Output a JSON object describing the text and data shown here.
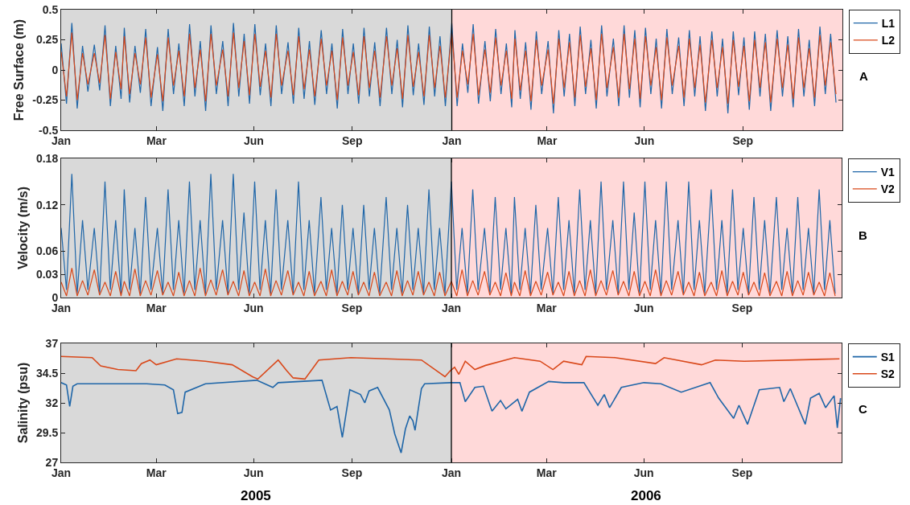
{
  "chart_data": [
    {
      "type": "line",
      "ylabel": "Free Surface (m)",
      "annotations": [
        "A"
      ],
      "legend": "top right",
      "x": [
        "2005-01-01",
        "2005-01-06",
        "2005-01-11",
        "2005-01-16",
        "2005-01-21",
        "2005-01-26",
        "2005-02-01",
        "2005-02-06",
        "2005-02-11",
        "2005-02-16",
        "2005-02-21",
        "2005-02-26",
        "2005-03-01",
        "2005-03-06",
        "2005-03-11",
        "2005-03-16",
        "2005-03-21",
        "2005-03-26",
        "2005-04-01",
        "2005-04-06",
        "2005-04-11",
        "2005-04-16",
        "2005-04-21",
        "2005-04-26",
        "2005-05-01",
        "2005-05-06",
        "2005-05-11",
        "2005-05-16",
        "2005-05-21",
        "2005-05-26",
        "2005-06-01",
        "2005-06-06",
        "2005-06-11",
        "2005-06-16",
        "2005-06-21",
        "2005-06-26",
        "2005-07-01",
        "2005-07-06",
        "2005-07-11",
        "2005-07-16",
        "2005-07-21",
        "2005-07-26",
        "2005-08-01",
        "2005-08-06",
        "2005-08-11",
        "2005-08-16",
        "2005-08-21",
        "2005-08-26",
        "2005-09-01",
        "2005-09-06",
        "2005-09-11",
        "2005-09-16",
        "2005-09-21",
        "2005-09-26",
        "2005-10-01",
        "2005-10-06",
        "2005-10-11",
        "2005-10-16",
        "2005-10-21",
        "2005-10-26",
        "2005-11-01",
        "2005-11-06",
        "2005-11-11",
        "2005-11-16",
        "2005-11-21",
        "2005-11-26",
        "2005-12-01",
        "2005-12-06",
        "2005-12-11",
        "2005-12-16",
        "2005-12-21",
        "2005-12-26",
        "2006-01-01",
        "2006-01-06",
        "2006-01-11",
        "2006-01-16",
        "2006-01-21",
        "2006-01-26",
        "2006-02-01",
        "2006-02-06",
        "2006-02-11",
        "2006-02-16",
        "2006-02-21",
        "2006-02-26",
        "2006-03-01",
        "2006-03-06",
        "2006-03-11",
        "2006-03-16",
        "2006-03-21",
        "2006-03-26",
        "2006-04-01",
        "2006-04-06",
        "2006-04-11",
        "2006-04-16",
        "2006-04-21",
        "2006-04-26",
        "2006-05-01",
        "2006-05-06",
        "2006-05-11",
        "2006-05-16",
        "2006-05-21",
        "2006-05-26",
        "2006-06-01",
        "2006-06-06",
        "2006-06-11",
        "2006-06-16",
        "2006-06-21",
        "2006-06-26",
        "2006-07-01",
        "2006-07-06",
        "2006-07-11",
        "2006-07-16",
        "2006-07-21",
        "2006-07-26",
        "2006-08-01",
        "2006-08-06",
        "2006-08-11",
        "2006-08-16",
        "2006-08-21",
        "2006-08-26",
        "2006-09-01",
        "2006-09-06",
        "2006-09-11",
        "2006-09-16",
        "2006-09-21",
        "2006-09-26",
        "2006-10-01",
        "2006-10-06",
        "2006-10-11",
        "2006-10-16",
        "2006-10-21",
        "2006-10-26",
        "2006-11-01",
        "2006-11-06",
        "2006-11-11",
        "2006-11-16",
        "2006-11-21",
        "2006-11-26",
        "2006-12-01",
        "2006-12-06",
        "2006-12-11",
        "2006-12-16",
        "2006-12-21",
        "2006-12-26"
      ],
      "series": [
        {
          "name": "L1",
          "color": "#1f66a8",
          "values": [
            0.22,
            -0.28,
            0.39,
            -0.32,
            0.2,
            -0.18,
            0.21,
            -0.17,
            0.37,
            -0.3,
            0.2,
            -0.24,
            0.35,
            -0.27,
            0.2,
            -0.19,
            0.34,
            -0.3,
            0.19,
            -0.34,
            0.34,
            -0.2,
            0.22,
            -0.3,
            0.38,
            -0.22,
            0.24,
            -0.34,
            0.37,
            -0.2,
            0.24,
            -0.3,
            0.39,
            -0.22,
            0.3,
            -0.28,
            0.38,
            -0.21,
            0.22,
            -0.3,
            0.37,
            -0.2,
            0.23,
            -0.28,
            0.35,
            -0.24,
            0.24,
            -0.29,
            0.33,
            -0.2,
            0.22,
            -0.32,
            0.34,
            -0.2,
            0.22,
            -0.28,
            0.35,
            -0.22,
            0.23,
            -0.3,
            0.35,
            -0.2,
            0.25,
            -0.31,
            0.37,
            -0.21,
            0.22,
            -0.29,
            0.36,
            -0.22,
            0.28,
            -0.3,
            0.39,
            -0.3,
            0.22,
            -0.19,
            0.38,
            -0.28,
            0.24,
            -0.26,
            0.34,
            -0.2,
            0.22,
            -0.31,
            0.33,
            -0.24,
            0.23,
            -0.33,
            0.32,
            -0.2,
            0.24,
            -0.36,
            0.33,
            -0.22,
            0.3,
            -0.3,
            0.36,
            -0.2,
            0.25,
            -0.32,
            0.37,
            -0.22,
            0.26,
            -0.3,
            0.37,
            -0.23,
            0.33,
            -0.31,
            0.35,
            -0.2,
            0.26,
            -0.32,
            0.34,
            -0.2,
            0.27,
            -0.3,
            0.33,
            -0.22,
            0.28,
            -0.34,
            0.32,
            -0.22,
            0.26,
            -0.36,
            0.32,
            -0.21,
            0.27,
            -0.33,
            0.32,
            -0.22,
            0.3,
            -0.34,
            0.33,
            -0.22,
            0.28,
            -0.31,
            0.34,
            -0.22,
            0.25,
            -0.3,
            0.36,
            -0.2,
            0.3,
            -0.27
          ]
        },
        {
          "name": "L2",
          "color": "#d9481a",
          "values": [
            0.15,
            -0.22,
            0.31,
            -0.25,
            0.14,
            -0.12,
            0.14,
            -0.11,
            0.29,
            -0.24,
            0.15,
            -0.16,
            0.28,
            -0.2,
            0.14,
            -0.12,
            0.27,
            -0.23,
            0.13,
            -0.26,
            0.27,
            -0.13,
            0.16,
            -0.22,
            0.3,
            -0.15,
            0.17,
            -0.26,
            0.3,
            -0.13,
            0.17,
            -0.22,
            0.31,
            -0.15,
            0.24,
            -0.21,
            0.3,
            -0.14,
            0.16,
            -0.23,
            0.3,
            -0.13,
            0.16,
            -0.21,
            0.28,
            -0.16,
            0.17,
            -0.22,
            0.26,
            -0.13,
            0.16,
            -0.25,
            0.27,
            -0.13,
            0.15,
            -0.21,
            0.28,
            -0.15,
            0.16,
            -0.23,
            0.28,
            -0.13,
            0.18,
            -0.24,
            0.29,
            -0.14,
            0.15,
            -0.22,
            0.29,
            -0.15,
            0.2,
            -0.23,
            0.31,
            -0.23,
            0.16,
            -0.12,
            0.3,
            -0.21,
            0.17,
            -0.19,
            0.27,
            -0.13,
            0.16,
            -0.24,
            0.26,
            -0.17,
            0.16,
            -0.26,
            0.25,
            -0.13,
            0.17,
            -0.28,
            0.26,
            -0.15,
            0.23,
            -0.23,
            0.29,
            -0.14,
            0.18,
            -0.25,
            0.3,
            -0.15,
            0.19,
            -0.23,
            0.3,
            -0.16,
            0.26,
            -0.24,
            0.28,
            -0.13,
            0.19,
            -0.25,
            0.27,
            -0.13,
            0.2,
            -0.23,
            0.26,
            -0.15,
            0.21,
            -0.27,
            0.25,
            -0.15,
            0.19,
            -0.28,
            0.25,
            -0.14,
            0.2,
            -0.26,
            0.25,
            -0.15,
            0.23,
            -0.27,
            0.26,
            -0.15,
            0.21,
            -0.24,
            0.27,
            -0.15,
            0.18,
            -0.23,
            0.29,
            -0.13,
            0.23,
            -0.2
          ]
        }
      ],
      "xlim": [
        "2005-01-01",
        "2007-01-01"
      ],
      "xticks": [
        {
          "value": "2005-01-01",
          "label": "Jan"
        },
        {
          "value": "2005-03-31",
          "label": "Mar"
        },
        {
          "value": "2005-06-30",
          "label": "Jun"
        },
        {
          "value": "2005-09-30",
          "label": "Sep"
        },
        {
          "value": "2006-01-01",
          "label": "Jan"
        },
        {
          "value": "2006-03-31",
          "label": "Mar"
        },
        {
          "value": "2006-06-30",
          "label": "Jun"
        },
        {
          "value": "2006-09-30",
          "label": "Sep"
        }
      ],
      "ylim": [
        -0.5,
        0.5
      ],
      "yticks": [
        -0.5,
        -0.25,
        0,
        0.25,
        0.5
      ],
      "bands": [
        {
          "axis": "x",
          "from": "2005-01-01",
          "to": "2006-01-01",
          "color": "#d9d9d9"
        },
        {
          "axis": "x",
          "from": "2006-01-01",
          "to": "2007-01-01",
          "color": "#ffd9d9"
        }
      ],
      "ref_lines": [
        {
          "axis": "x",
          "value": "2006-01-01",
          "color": "#000000"
        }
      ]
    },
    {
      "type": "line",
      "ylabel": "Velocity (m/s)",
      "annotations": [
        "B"
      ],
      "legend": "top right",
      "x": [
        "2005-01-01",
        "2005-01-06",
        "2005-01-11",
        "2005-01-16",
        "2005-01-21",
        "2005-01-26",
        "2005-02-01",
        "2005-02-06",
        "2005-02-11",
        "2005-02-16",
        "2005-02-21",
        "2005-02-26",
        "2005-03-01",
        "2005-03-06",
        "2005-03-11",
        "2005-03-16",
        "2005-03-21",
        "2005-03-26",
        "2005-04-01",
        "2005-04-06",
        "2005-04-11",
        "2005-04-16",
        "2005-04-21",
        "2005-04-26",
        "2005-05-01",
        "2005-05-06",
        "2005-05-11",
        "2005-05-16",
        "2005-05-21",
        "2005-05-26",
        "2005-06-01",
        "2005-06-06",
        "2005-06-11",
        "2005-06-16",
        "2005-06-21",
        "2005-06-26",
        "2005-07-01",
        "2005-07-06",
        "2005-07-11",
        "2005-07-16",
        "2005-07-21",
        "2005-07-26",
        "2005-08-01",
        "2005-08-06",
        "2005-08-11",
        "2005-08-16",
        "2005-08-21",
        "2005-08-26",
        "2005-09-01",
        "2005-09-06",
        "2005-09-11",
        "2005-09-16",
        "2005-09-21",
        "2005-09-26",
        "2005-10-01",
        "2005-10-06",
        "2005-10-11",
        "2005-10-16",
        "2005-10-21",
        "2005-10-26",
        "2005-11-01",
        "2005-11-06",
        "2005-11-11",
        "2005-11-16",
        "2005-11-21",
        "2005-11-26",
        "2005-12-01",
        "2005-12-06",
        "2005-12-11",
        "2005-12-16",
        "2005-12-21",
        "2005-12-26",
        "2006-01-01",
        "2006-01-06",
        "2006-01-11",
        "2006-01-16",
        "2006-01-21",
        "2006-01-26",
        "2006-02-01",
        "2006-02-06",
        "2006-02-11",
        "2006-02-16",
        "2006-02-21",
        "2006-02-26",
        "2006-03-01",
        "2006-03-06",
        "2006-03-11",
        "2006-03-16",
        "2006-03-21",
        "2006-03-26",
        "2006-04-01",
        "2006-04-06",
        "2006-04-11",
        "2006-04-16",
        "2006-04-21",
        "2006-04-26",
        "2006-05-01",
        "2006-05-06",
        "2006-05-11",
        "2006-05-16",
        "2006-05-21",
        "2006-05-26",
        "2006-06-01",
        "2006-06-06",
        "2006-06-11",
        "2006-06-16",
        "2006-06-21",
        "2006-06-26",
        "2006-07-01",
        "2006-07-06",
        "2006-07-11",
        "2006-07-16",
        "2006-07-21",
        "2006-07-26",
        "2006-08-01",
        "2006-08-06",
        "2006-08-11",
        "2006-08-16",
        "2006-08-21",
        "2006-08-26",
        "2006-09-01",
        "2006-09-06",
        "2006-09-11",
        "2006-09-16",
        "2006-09-21",
        "2006-09-26",
        "2006-10-01",
        "2006-10-06",
        "2006-10-11",
        "2006-10-16",
        "2006-10-21",
        "2006-10-26",
        "2006-11-01",
        "2006-11-06",
        "2006-11-11",
        "2006-11-16",
        "2006-11-21",
        "2006-11-26",
        "2006-12-01",
        "2006-12-06",
        "2006-12-11",
        "2006-12-16",
        "2006-12-21",
        "2006-12-26"
      ],
      "series": [
        {
          "name": "V1",
          "color": "#1f66a8",
          "values": [
            0.09,
            0.01,
            0.16,
            0.005,
            0.1,
            0.01,
            0.09,
            0.005,
            0.15,
            0.01,
            0.1,
            0.005,
            0.14,
            0.01,
            0.09,
            0.005,
            0.13,
            0.01,
            0.09,
            0.005,
            0.14,
            0.01,
            0.1,
            0.005,
            0.15,
            0.01,
            0.1,
            0.005,
            0.16,
            0.01,
            0.1,
            0.005,
            0.16,
            0.01,
            0.11,
            0.005,
            0.15,
            0.01,
            0.1,
            0.005,
            0.14,
            0.01,
            0.1,
            0.005,
            0.15,
            0.01,
            0.1,
            0.005,
            0.13,
            0.01,
            0.09,
            0.005,
            0.12,
            0.01,
            0.09,
            0.005,
            0.12,
            0.01,
            0.09,
            0.005,
            0.13,
            0.01,
            0.09,
            0.005,
            0.12,
            0.01,
            0.09,
            0.005,
            0.14,
            0.01,
            0.09,
            0.005,
            0.15,
            0.01,
            0.09,
            0.005,
            0.14,
            0.01,
            0.09,
            0.005,
            0.13,
            0.01,
            0.09,
            0.005,
            0.13,
            0.01,
            0.09,
            0.005,
            0.12,
            0.01,
            0.09,
            0.005,
            0.13,
            0.01,
            0.1,
            0.005,
            0.14,
            0.01,
            0.1,
            0.005,
            0.15,
            0.01,
            0.1,
            0.005,
            0.15,
            0.01,
            0.11,
            0.005,
            0.15,
            0.01,
            0.1,
            0.005,
            0.15,
            0.01,
            0.1,
            0.005,
            0.15,
            0.01,
            0.1,
            0.005,
            0.14,
            0.01,
            0.1,
            0.005,
            0.14,
            0.01,
            0.09,
            0.005,
            0.13,
            0.01,
            0.1,
            0.005,
            0.13,
            0.01,
            0.09,
            0.005,
            0.13,
            0.01,
            0.09,
            0.005,
            0.14,
            0.01,
            0.1,
            0.005
          ]
        },
        {
          "name": "V2",
          "color": "#d9481a",
          "values": [
            0.02,
            0.002,
            0.038,
            0.002,
            0.022,
            0.003,
            0.036,
            0.003,
            0.02,
            0.002,
            0.034,
            0.002,
            0.021,
            0.002,
            0.037,
            0.002,
            0.022,
            0.003,
            0.035,
            0.003,
            0.02,
            0.002,
            0.033,
            0.002,
            0.022,
            0.002,
            0.038,
            0.002,
            0.023,
            0.003,
            0.036,
            0.003,
            0.021,
            0.002,
            0.035,
            0.002,
            0.02,
            0.002,
            0.037,
            0.002,
            0.022,
            0.003,
            0.035,
            0.003,
            0.02,
            0.002,
            0.034,
            0.002,
            0.021,
            0.002,
            0.036,
            0.002,
            0.021,
            0.003,
            0.034,
            0.003,
            0.02,
            0.002,
            0.033,
            0.002,
            0.02,
            0.002,
            0.035,
            0.002,
            0.022,
            0.003,
            0.034,
            0.003,
            0.02,
            0.002,
            0.033,
            0.002,
            0.021,
            0.002,
            0.036,
            0.002,
            0.022,
            0.003,
            0.034,
            0.003,
            0.02,
            0.002,
            0.032,
            0.002,
            0.02,
            0.002,
            0.035,
            0.002,
            0.021,
            0.003,
            0.033,
            0.003,
            0.02,
            0.002,
            0.034,
            0.002,
            0.022,
            0.002,
            0.036,
            0.002,
            0.022,
            0.003,
            0.035,
            0.003,
            0.021,
            0.002,
            0.034,
            0.002,
            0.021,
            0.002,
            0.036,
            0.002,
            0.022,
            0.003,
            0.034,
            0.003,
            0.02,
            0.002,
            0.033,
            0.002,
            0.02,
            0.002,
            0.035,
            0.002,
            0.021,
            0.003,
            0.033,
            0.003,
            0.02,
            0.002,
            0.032,
            0.002,
            0.021,
            0.002,
            0.034,
            0.002,
            0.022,
            0.003,
            0.033,
            0.003,
            0.02,
            0.002,
            0.032,
            0.002
          ]
        }
      ],
      "xlim": [
        "2005-01-01",
        "2007-01-01"
      ],
      "xticks": [
        {
          "value": "2005-01-01",
          "label": "Jan"
        },
        {
          "value": "2005-03-31",
          "label": "Mar"
        },
        {
          "value": "2005-06-30",
          "label": "Jun"
        },
        {
          "value": "2005-09-30",
          "label": "Sep"
        },
        {
          "value": "2006-01-01",
          "label": "Jan"
        },
        {
          "value": "2006-03-31",
          "label": "Mar"
        },
        {
          "value": "2006-06-30",
          "label": "Jun"
        },
        {
          "value": "2006-09-30",
          "label": "Sep"
        }
      ],
      "ylim": [
        0,
        0.18
      ],
      "yticks": [
        0,
        0.03,
        0.06,
        0.12,
        0.18
      ],
      "bands": [
        {
          "axis": "x",
          "from": "2005-01-01",
          "to": "2006-01-01",
          "color": "#d9d9d9"
        },
        {
          "axis": "x",
          "from": "2006-01-01",
          "to": "2007-01-01",
          "color": "#ffd9d9"
        }
      ],
      "ref_lines": [
        {
          "axis": "x",
          "value": "2006-01-01",
          "color": "#000000"
        }
      ]
    },
    {
      "type": "line",
      "ylabel": "Salinity (psu)",
      "annotations": [
        "C"
      ],
      "legend": "top right",
      "series": [
        {
          "name": "S1",
          "color": "#1f66a8",
          "x": [
            "2005-01-01",
            "2005-01-06",
            "2005-01-09",
            "2005-01-12",
            "2005-01-16",
            "2005-03-22",
            "2005-04-08",
            "2005-04-16",
            "2005-04-20",
            "2005-04-24",
            "2005-04-27",
            "2005-05-16",
            "2005-07-03",
            "2005-07-18",
            "2005-07-23",
            "2005-09-02",
            "2005-09-10",
            "2005-09-16",
            "2005-09-21",
            "2005-09-28",
            "2005-10-08",
            "2005-10-12",
            "2005-10-16",
            "2005-10-24",
            "2005-11-04",
            "2005-11-09",
            "2005-11-15",
            "2005-11-19",
            "2005-11-23",
            "2005-11-26",
            "2005-11-28",
            "2005-12-04",
            "2005-12-07",
            "2005-12-31",
            "2006-01-09",
            "2006-01-14",
            "2006-01-23",
            "2006-01-31",
            "2006-02-08",
            "2006-02-16",
            "2006-02-21",
            "2006-03-04",
            "2006-03-08",
            "2006-03-15",
            "2006-04-02",
            "2006-04-16",
            "2006-05-05",
            "2006-05-18",
            "2006-05-24",
            "2006-05-29",
            "2006-06-09",
            "2006-06-30",
            "2006-07-16",
            "2006-08-04",
            "2006-08-31",
            "2006-09-08",
            "2006-09-22",
            "2006-09-27",
            "2006-10-05",
            "2006-10-16",
            "2006-11-04",
            "2006-11-08",
            "2006-11-14",
            "2006-11-28",
            "2006-12-03",
            "2006-12-11",
            "2006-12-17",
            "2006-12-25",
            "2006-12-28",
            "2006-12-31"
          ],
          "values": [
            33.7,
            33.5,
            31.7,
            33.4,
            33.6,
            33.6,
            33.5,
            33.1,
            31.1,
            31.2,
            32.9,
            33.6,
            33.9,
            33.3,
            33.7,
            33.9,
            31.4,
            31.7,
            29.1,
            33.1,
            32.7,
            32.0,
            33.0,
            33.3,
            31.4,
            29.4,
            27.8,
            29.8,
            30.9,
            30.5,
            29.7,
            33.2,
            33.6,
            33.7,
            33.7,
            32.1,
            33.3,
            33.4,
            31.3,
            32.2,
            31.5,
            32.3,
            31.3,
            32.9,
            33.8,
            33.7,
            33.7,
            31.8,
            32.7,
            31.6,
            33.3,
            33.7,
            33.6,
            32.9,
            33.7,
            32.4,
            30.7,
            31.8,
            30.2,
            33.1,
            33.3,
            32.1,
            33.2,
            30.2,
            32.4,
            32.8,
            31.6,
            32.6,
            29.9,
            32.4
          ]
        },
        {
          "name": "S2",
          "color": "#d9481a",
          "x": [
            "2005-01-01",
            "2005-01-30",
            "2005-02-07",
            "2005-02-23",
            "2005-03-12",
            "2005-03-17",
            "2005-03-25",
            "2005-03-31",
            "2005-04-19",
            "2005-05-16",
            "2005-06-10",
            "2005-06-29",
            "2005-07-04",
            "2005-07-23",
            "2005-07-31",
            "2005-08-06",
            "2005-08-17",
            "2005-08-30",
            "2005-09-29",
            "2005-12-04",
            "2005-12-26",
            "2005-12-31",
            "2006-01-04",
            "2006-01-08",
            "2006-01-14",
            "2006-01-23",
            "2006-02-02",
            "2006-03-01",
            "2006-03-25",
            "2006-04-06",
            "2006-04-16",
            "2006-05-03",
            "2006-05-07",
            "2006-06-03",
            "2006-07-11",
            "2006-07-19",
            "2006-08-23",
            "2006-09-05",
            "2006-10-02",
            "2006-12-30"
          ],
          "values": [
            35.9,
            35.8,
            35.1,
            34.8,
            34.7,
            35.3,
            35.6,
            35.2,
            35.7,
            35.5,
            35.2,
            34.2,
            34.0,
            35.6,
            34.7,
            34.1,
            34.0,
            35.6,
            35.8,
            35.6,
            34.2,
            34.7,
            35.0,
            34.4,
            35.5,
            34.8,
            35.15,
            35.8,
            35.5,
            34.8,
            35.5,
            35.2,
            35.9,
            35.8,
            35.3,
            35.8,
            35.2,
            35.6,
            35.5,
            35.7
          ]
        }
      ],
      "xlim": [
        "2005-01-01",
        "2007-01-01"
      ],
      "xticks": [
        {
          "value": "2005-01-01",
          "label": "Jan"
        },
        {
          "value": "2005-03-31",
          "label": "Mar"
        },
        {
          "value": "2005-06-30",
          "label": "Jun"
        },
        {
          "value": "2005-09-30",
          "label": "Sep"
        },
        {
          "value": "2006-01-01",
          "label": "Jan"
        },
        {
          "value": "2006-03-31",
          "label": "Mar"
        },
        {
          "value": "2006-06-30",
          "label": "Jun"
        },
        {
          "value": "2006-09-30",
          "label": "Sep"
        }
      ],
      "ylim": [
        27,
        37
      ],
      "yticks": [
        27,
        29.5,
        32,
        34.5,
        37
      ],
      "bands": [
        {
          "axis": "x",
          "from": "2005-01-01",
          "to": "2006-01-01",
          "color": "#d9d9d9",
          "label": "2005"
        },
        {
          "axis": "x",
          "from": "2006-01-01",
          "to": "2007-01-01",
          "color": "#ffd9d9",
          "label": "2006"
        }
      ],
      "ref_lines": [
        {
          "axis": "x",
          "value": "2006-01-01",
          "color": "#000000"
        }
      ]
    }
  ]
}
